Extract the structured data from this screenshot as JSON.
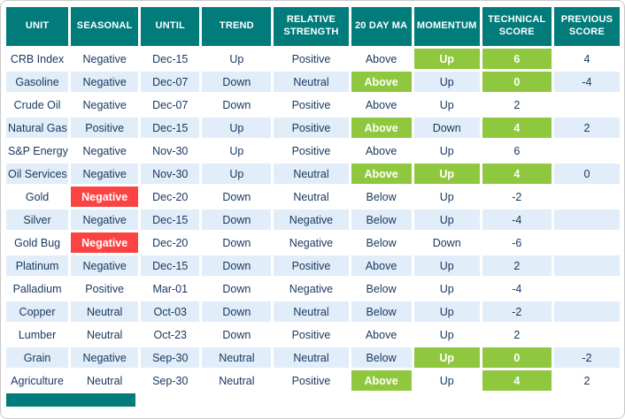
{
  "colors": {
    "header_bg": "#027b7b",
    "row_bg": "#ffffff",
    "row_alt_bg": "#e1edf8",
    "highlight_green": "#8fc73e",
    "highlight_red": "#fb4343",
    "text": "#17375e",
    "header_text": "#ffffff"
  },
  "chart_data": {
    "type": "table",
    "columns": [
      "UNIT",
      "SEASONAL",
      "UNTIL",
      "TREND",
      "RELATIVE STRENGTH",
      "20 DAY MA",
      "MOMENTUM",
      "TECHNICAL SCORE",
      "PREVIOUS SCORE"
    ],
    "rows": [
      {
        "cells": [
          "CRB Index",
          "Negative",
          "Dec-15",
          "Up",
          "Positive",
          "Above",
          "Up",
          "6",
          "4"
        ],
        "highlights": [
          {
            "col": 6,
            "color": "green"
          },
          {
            "col": 7,
            "color": "green"
          }
        ]
      },
      {
        "cells": [
          "Gasoline",
          "Negative",
          "Dec-07",
          "Down",
          "Neutral",
          "Above",
          "Up",
          "0",
          "-4"
        ],
        "highlights": [
          {
            "col": 5,
            "color": "green"
          },
          {
            "col": 7,
            "color": "green"
          }
        ]
      },
      {
        "cells": [
          "Crude Oil",
          "Negative",
          "Dec-07",
          "Down",
          "Positive",
          "Above",
          "Up",
          "2",
          ""
        ],
        "highlights": []
      },
      {
        "cells": [
          "Natural Gas",
          "Positive",
          "Dec-15",
          "Up",
          "Positive",
          "Above",
          "Down",
          "4",
          "2"
        ],
        "highlights": [
          {
            "col": 5,
            "color": "green"
          },
          {
            "col": 7,
            "color": "green"
          }
        ]
      },
      {
        "cells": [
          "S&P Energy",
          "Negative",
          "Nov-30",
          "Up",
          "Positive",
          "Above",
          "Up",
          "6",
          ""
        ],
        "highlights": []
      },
      {
        "cells": [
          "Oil Services",
          "Negative",
          "Nov-30",
          "Up",
          "Neutral",
          "Above",
          "Up",
          "4",
          "0"
        ],
        "highlights": [
          {
            "col": 5,
            "color": "green"
          },
          {
            "col": 6,
            "color": "green"
          },
          {
            "col": 7,
            "color": "green"
          }
        ]
      },
      {
        "cells": [
          "Gold",
          "Negative",
          "Dec-20",
          "Down",
          "Neutral",
          "Below",
          "Up",
          "-2",
          ""
        ],
        "highlights": [
          {
            "col": 1,
            "color": "red"
          }
        ]
      },
      {
        "cells": [
          "Silver",
          "Negative",
          "Dec-15",
          "Down",
          "Negative",
          "Below",
          "Up",
          "-4",
          ""
        ],
        "highlights": []
      },
      {
        "cells": [
          "Gold Bug",
          "Negative",
          "Dec-20",
          "Down",
          "Negative",
          "Below",
          "Down",
          "-6",
          ""
        ],
        "highlights": [
          {
            "col": 1,
            "color": "red"
          }
        ]
      },
      {
        "cells": [
          "Platinum",
          "Negative",
          "Dec-15",
          "Down",
          "Positive",
          "Above",
          "Up",
          "2",
          ""
        ],
        "highlights": []
      },
      {
        "cells": [
          "Palladium",
          "Positive",
          "Mar-01",
          "Down",
          "Negative",
          "Below",
          "Up",
          "-4",
          ""
        ],
        "highlights": []
      },
      {
        "cells": [
          "Copper",
          "Neutral",
          "Oct-03",
          "Down",
          "Neutral",
          "Below",
          "Up",
          "-2",
          ""
        ],
        "highlights": []
      },
      {
        "cells": [
          "Lumber",
          "Neutral",
          "Oct-23",
          "Down",
          "Positive",
          "Above",
          "Up",
          "2",
          ""
        ],
        "highlights": []
      },
      {
        "cells": [
          "Grain",
          "Negative",
          "Sep-30",
          "Neutral",
          "Neutral",
          "Below",
          "Up",
          "0",
          "-2"
        ],
        "highlights": [
          {
            "col": 6,
            "color": "green"
          },
          {
            "col": 7,
            "color": "green"
          }
        ]
      },
      {
        "cells": [
          "Agriculture",
          "Neutral",
          "Sep-30",
          "Neutral",
          "Positive",
          "Above",
          "Up",
          "4",
          "2"
        ],
        "highlights": [
          {
            "col": 5,
            "color": "green"
          },
          {
            "col": 7,
            "color": "green"
          }
        ]
      }
    ]
  }
}
